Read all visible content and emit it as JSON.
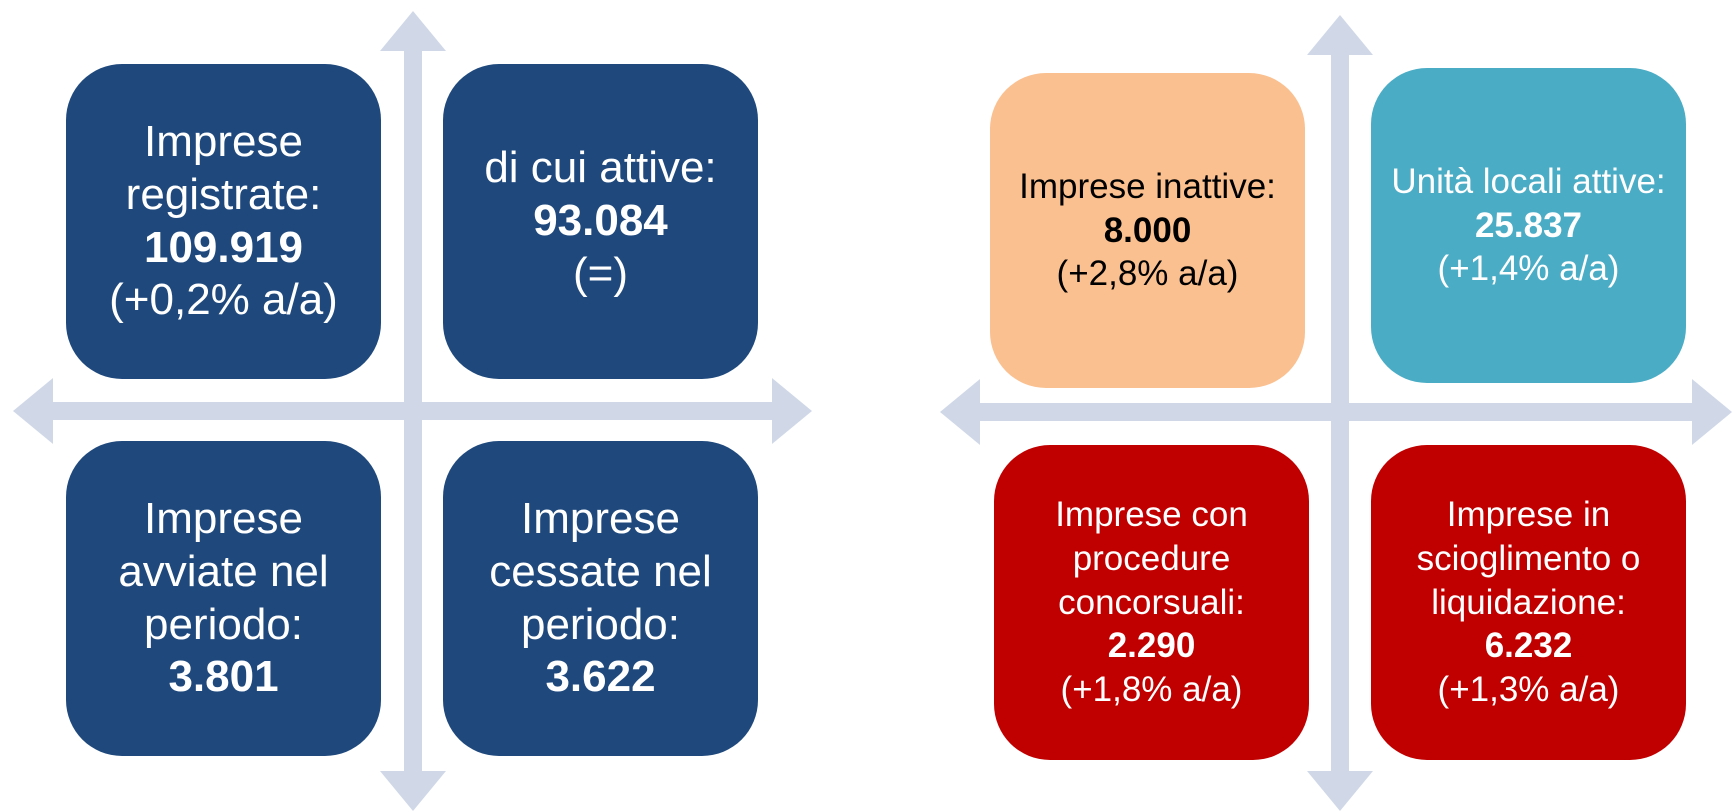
{
  "panels": [
    {
      "boxes": [
        {
          "label": "Imprese registrate:",
          "value": "109.919",
          "change": "(+0,2% a/a)",
          "color": "#1f497d"
        },
        {
          "label": "di cui attive:",
          "value": "93.084",
          "change": "(=)",
          "color": "#1f497d"
        },
        {
          "label": "Imprese avviate nel periodo:",
          "value": "3.801",
          "color": "#1f497d"
        },
        {
          "label": "Imprese cessate nel periodo:",
          "value": "3.622",
          "color": "#1f497d"
        }
      ]
    },
    {
      "boxes": [
        {
          "label": "Imprese inattive:",
          "value": "8.000",
          "change": "(+2,8% a/a)",
          "color": "#fac090"
        },
        {
          "label": "Unità locali attive:",
          "value": "25.837",
          "change": "(+1,4% a/a)",
          "color": "#4bacc6"
        },
        {
          "label": "Imprese con procedure concorsuali:",
          "value": "2.290",
          "change": "(+1,8% a/a)",
          "color": "#c00000"
        },
        {
          "label": "Imprese in scioglimento o liquidazione:",
          "value": "6.232",
          "change": "(+1,3% a/a)",
          "color": "#c00000"
        }
      ]
    }
  ]
}
